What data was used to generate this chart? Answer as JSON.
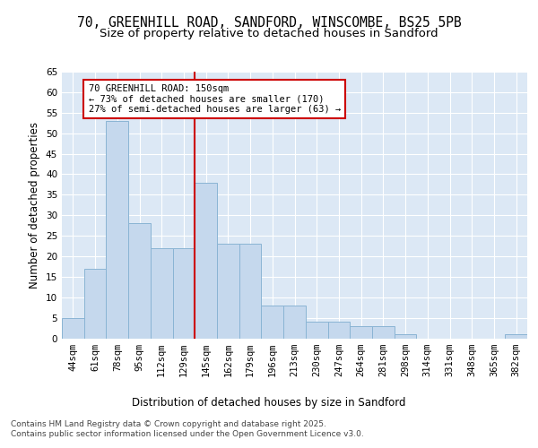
{
  "title_line1": "70, GREENHILL ROAD, SANDFORD, WINSCOMBE, BS25 5PB",
  "title_line2": "Size of property relative to detached houses in Sandford",
  "xlabel": "Distribution of detached houses by size in Sandford",
  "ylabel": "Number of detached properties",
  "bar_color": "#c5d8ed",
  "bar_edge_color": "#8ab4d4",
  "background_color": "#dce8f5",
  "bins": [
    "44sqm",
    "61sqm",
    "78sqm",
    "95sqm",
    "112sqm",
    "129sqm",
    "145sqm",
    "162sqm",
    "179sqm",
    "196sqm",
    "213sqm",
    "230sqm",
    "247sqm",
    "264sqm",
    "281sqm",
    "298sqm",
    "314sqm",
    "331sqm",
    "348sqm",
    "365sqm",
    "382sqm"
  ],
  "values": [
    5,
    17,
    53,
    28,
    22,
    22,
    38,
    23,
    23,
    8,
    8,
    4,
    4,
    3,
    3,
    1,
    0,
    0,
    0,
    0,
    1
  ],
  "annotation_text": "70 GREENHILL ROAD: 150sqm\n← 73% of detached houses are smaller (170)\n27% of semi-detached houses are larger (63) →",
  "annotation_box_color": "white",
  "annotation_box_edge_color": "#cc0000",
  "vline_color": "#cc0000",
  "vline_x": 5.5,
  "ylim": [
    0,
    65
  ],
  "yticks": [
    0,
    5,
    10,
    15,
    20,
    25,
    30,
    35,
    40,
    45,
    50,
    55,
    60,
    65
  ],
  "footer_line1": "Contains HM Land Registry data © Crown copyright and database right 2025.",
  "footer_line2": "Contains public sector information licensed under the Open Government Licence v3.0.",
  "grid_color": "#ffffff",
  "title1_fontsize": 10.5,
  "title2_fontsize": 9.5,
  "axis_label_fontsize": 8.5,
  "tick_fontsize": 7.5,
  "annotation_fontsize": 7.5,
  "footer_fontsize": 6.5
}
